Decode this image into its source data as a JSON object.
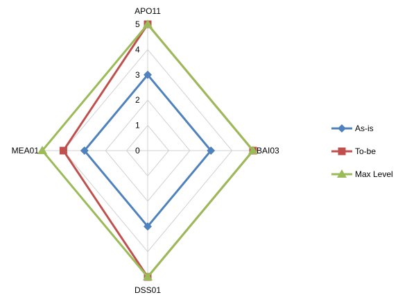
{
  "chart_data": {
    "type": "radar",
    "title": "",
    "axes": [
      "APO11",
      "BAI03",
      "DSS01",
      "MEA01"
    ],
    "r_range": [
      0,
      5
    ],
    "r_ticks": [
      "0",
      "1",
      "2",
      "3",
      "4",
      "5"
    ],
    "grid": true,
    "legend_position": "right",
    "series": [
      {
        "name": "As-is",
        "color": "#4F81BD",
        "marker": "diamond",
        "values": [
          3,
          3,
          3,
          3
        ]
      },
      {
        "name": "To-be",
        "color": "#C0504D",
        "marker": "square",
        "values": [
          5,
          5,
          5,
          4
        ]
      },
      {
        "name": "Max Level",
        "color": "#9BBB59",
        "marker": "triangle",
        "values": [
          5,
          5,
          5,
          5
        ]
      }
    ]
  }
}
